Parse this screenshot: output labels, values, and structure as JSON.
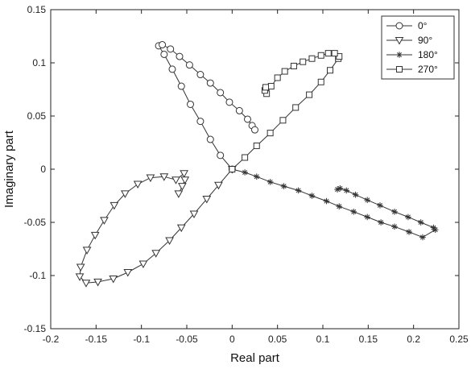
{
  "chart_data": {
    "type": "line",
    "xlabel": "Real part",
    "ylabel": "Imaginary part",
    "xlim": [
      -0.2,
      0.25
    ],
    "ylim": [
      -0.15,
      0.15
    ],
    "xticks": [
      -0.2,
      -0.15,
      -0.1,
      -0.05,
      0,
      0.05,
      0.1,
      0.15,
      0.2,
      0.25
    ],
    "xtick_labels": [
      "-0.2",
      "-0.15",
      "-0.1",
      "-0.05",
      "0",
      "0.05",
      "0.1",
      "0.15",
      "0.2",
      "0.25"
    ],
    "yticks": [
      -0.15,
      -0.1,
      -0.05,
      0,
      0.05,
      0.1,
      0.15
    ],
    "ytick_labels": [
      "-0.15",
      "-0.1",
      "-0.05",
      "0",
      "0.05",
      "0.1",
      "0.15"
    ],
    "grid": false,
    "legend_position": "top-right",
    "line_color": "#333333",
    "series": [
      {
        "name": "0°",
        "marker": "circle",
        "points": [
          [
            0.0,
            0.0
          ],
          [
            -0.013,
            0.013
          ],
          [
            -0.024,
            0.028
          ],
          [
            -0.035,
            0.045
          ],
          [
            -0.046,
            0.061
          ],
          [
            -0.056,
            0.078
          ],
          [
            -0.066,
            0.094
          ],
          [
            -0.075,
            0.108
          ],
          [
            -0.081,
            0.116
          ],
          [
            -0.077,
            0.117
          ],
          [
            -0.068,
            0.113
          ],
          [
            -0.058,
            0.106
          ],
          [
            -0.047,
            0.098
          ],
          [
            -0.035,
            0.089
          ],
          [
            -0.024,
            0.081
          ],
          [
            -0.013,
            0.072
          ],
          [
            -0.003,
            0.063
          ],
          [
            0.008,
            0.055
          ],
          [
            0.017,
            0.047
          ],
          [
            0.022,
            0.041
          ],
          [
            0.025,
            0.037
          ]
        ]
      },
      {
        "name": "90°",
        "marker": "triangle-down",
        "points": [
          [
            0.0,
            0.0
          ],
          [
            -0.015,
            -0.015
          ],
          [
            -0.028,
            -0.028
          ],
          [
            -0.042,
            -0.042
          ],
          [
            -0.056,
            -0.055
          ],
          [
            -0.069,
            -0.067
          ],
          [
            -0.084,
            -0.079
          ],
          [
            -0.098,
            -0.089
          ],
          [
            -0.115,
            -0.097
          ],
          [
            -0.131,
            -0.103
          ],
          [
            -0.148,
            -0.106
          ],
          [
            -0.161,
            -0.107
          ],
          [
            -0.168,
            -0.101
          ],
          [
            -0.167,
            -0.092
          ],
          [
            -0.16,
            -0.076
          ],
          [
            -0.151,
            -0.062
          ],
          [
            -0.141,
            -0.048
          ],
          [
            -0.13,
            -0.034
          ],
          [
            -0.118,
            -0.023
          ],
          [
            -0.104,
            -0.014
          ],
          [
            -0.09,
            -0.008
          ],
          [
            -0.075,
            -0.007
          ],
          [
            -0.062,
            -0.01
          ],
          [
            -0.053,
            -0.004
          ],
          [
            -0.052,
            -0.01
          ],
          [
            -0.055,
            -0.016
          ],
          [
            -0.059,
            -0.023
          ]
        ]
      },
      {
        "name": "180°",
        "marker": "asterisk",
        "points": [
          [
            0.0,
            0.0
          ],
          [
            0.014,
            -0.003
          ],
          [
            0.027,
            -0.007
          ],
          [
            0.042,
            -0.012
          ],
          [
            0.057,
            -0.016
          ],
          [
            0.073,
            -0.02
          ],
          [
            0.088,
            -0.025
          ],
          [
            0.104,
            -0.03
          ],
          [
            0.118,
            -0.035
          ],
          [
            0.134,
            -0.04
          ],
          [
            0.149,
            -0.045
          ],
          [
            0.164,
            -0.05
          ],
          [
            0.179,
            -0.054
          ],
          [
            0.195,
            -0.059
          ],
          [
            0.21,
            -0.064
          ],
          [
            0.224,
            -0.057
          ],
          [
            0.222,
            -0.055
          ],
          [
            0.208,
            -0.05
          ],
          [
            0.194,
            -0.045
          ],
          [
            0.179,
            -0.04
          ],
          [
            0.163,
            -0.034
          ],
          [
            0.149,
            -0.029
          ],
          [
            0.136,
            -0.024
          ],
          [
            0.126,
            -0.02
          ],
          [
            0.119,
            -0.018
          ],
          [
            0.116,
            -0.019
          ]
        ]
      },
      {
        "name": "270°",
        "marker": "square",
        "points": [
          [
            0.0,
            0.0
          ],
          [
            0.014,
            0.011
          ],
          [
            0.027,
            0.022
          ],
          [
            0.042,
            0.034
          ],
          [
            0.056,
            0.046
          ],
          [
            0.07,
            0.058
          ],
          [
            0.085,
            0.07
          ],
          [
            0.098,
            0.082
          ],
          [
            0.108,
            0.093
          ],
          [
            0.117,
            0.104
          ],
          [
            0.118,
            0.106
          ],
          [
            0.113,
            0.109
          ],
          [
            0.106,
            0.109
          ],
          [
            0.098,
            0.107
          ],
          [
            0.088,
            0.104
          ],
          [
            0.078,
            0.101
          ],
          [
            0.068,
            0.097
          ],
          [
            0.058,
            0.092
          ],
          [
            0.05,
            0.086
          ],
          [
            0.043,
            0.078
          ],
          [
            0.038,
            0.071
          ],
          [
            0.036,
            0.074
          ],
          [
            0.037,
            0.077
          ]
        ]
      }
    ]
  }
}
